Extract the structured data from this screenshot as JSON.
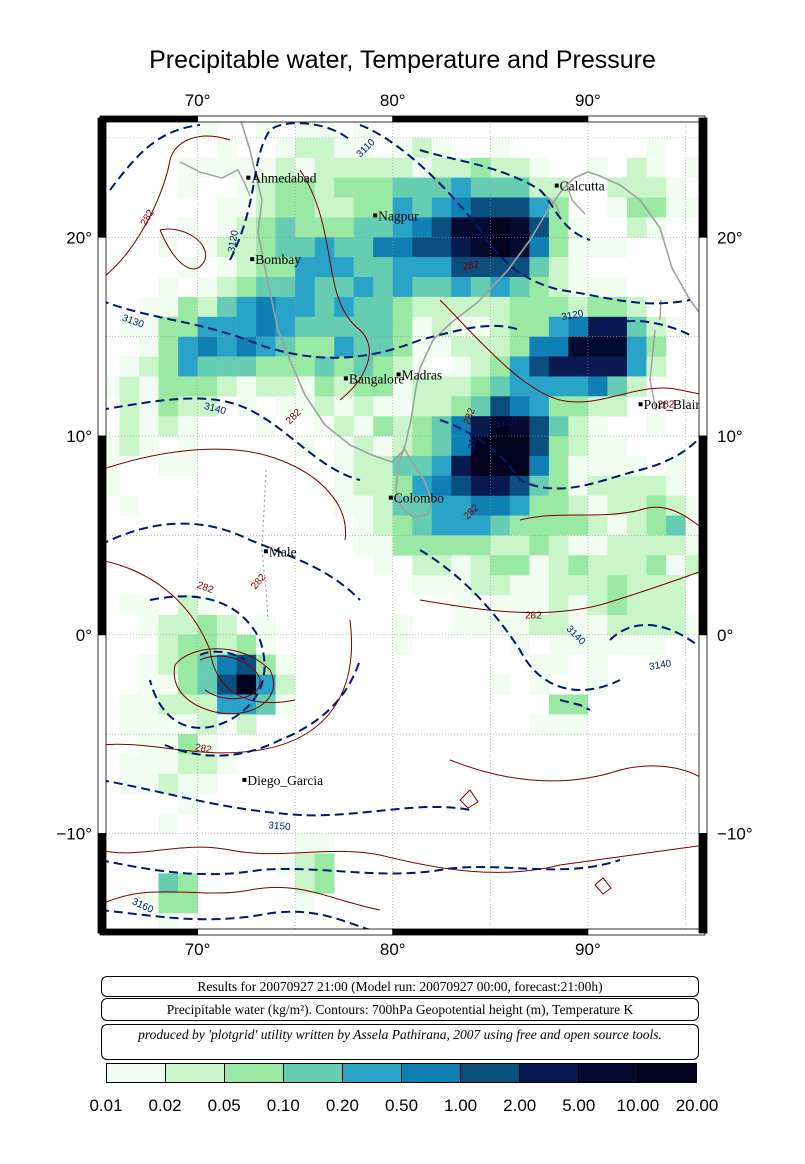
{
  "title": "Precipitable water, Temperature and Pressure",
  "map": {
    "lon_range": [
      65,
      96
    ],
    "lat_range": [
      -15,
      26
    ],
    "lon_ticks": [
      "70°",
      "80°",
      "90°"
    ],
    "lat_ticks": [
      "20°",
      "10°",
      "0°",
      "−10°"
    ],
    "grid": "dotted every 5°",
    "land_outline_color": "#a0a0a0",
    "cities": [
      {
        "name": "Ahmedabad",
        "lon": 72.6,
        "lat": 23.0
      },
      {
        "name": "Calcutta",
        "lon": 88.4,
        "lat": 22.6
      },
      {
        "name": "Nagpur",
        "lon": 79.1,
        "lat": 21.1
      },
      {
        "name": "Bombay",
        "lon": 72.8,
        "lat": 18.9
      },
      {
        "name": "Madras",
        "lon": 80.3,
        "lat": 13.1
      },
      {
        "name": "Bangalore",
        "lon": 77.6,
        "lat": 12.9
      },
      {
        "name": "Port_Blair",
        "lon": 92.7,
        "lat": 11.6
      },
      {
        "name": "Colombo",
        "lon": 79.9,
        "lat": 6.9
      },
      {
        "name": "Male",
        "lon": 73.5,
        "lat": 4.2
      },
      {
        "name": "Diego_Garcia",
        "lon": 72.4,
        "lat": -7.3
      }
    ],
    "contour_labels": {
      "geopotential": [
        {
          "text": "3110",
          "lon": 78.6,
          "lat": 24.5,
          "rot": -45
        },
        {
          "text": "3120",
          "lon": 71.8,
          "lat": 19.8,
          "rot": -80
        },
        {
          "text": "3120",
          "lon": 89.2,
          "lat": 16.1,
          "rot": -10
        },
        {
          "text": "3130",
          "lon": 66.7,
          "lat": 15.8,
          "rot": 20
        },
        {
          "text": "3140",
          "lon": 70.9,
          "lat": 11.4,
          "rot": 15
        },
        {
          "text": "3130",
          "lon": 84.1,
          "lat": 9.9,
          "rot": -80
        },
        {
          "text": "3120",
          "lon": 85.8,
          "lat": 10.7,
          "rot": -10
        },
        {
          "text": "3140",
          "lon": 89.4,
          "lat": 0.0,
          "rot": 45
        },
        {
          "text": "3140",
          "lon": 93.7,
          "lat": -1.5,
          "rot": -10
        },
        {
          "text": "3150",
          "lon": 74.2,
          "lat": -9.6,
          "rot": 5
        },
        {
          "text": "3160",
          "lon": 67.2,
          "lat": -13.6,
          "rot": 25
        }
      ],
      "temperature": [
        {
          "text": "282",
          "lon": 67.4,
          "lat": 21.0,
          "rot": -60
        },
        {
          "text": "282",
          "lon": 84.0,
          "lat": 18.6,
          "rot": -10
        },
        {
          "text": "282",
          "lon": 74.9,
          "lat": 11.0,
          "rot": -45
        },
        {
          "text": "282",
          "lon": 83.9,
          "lat": 11.0,
          "rot": -70
        },
        {
          "text": "282",
          "lon": 84.0,
          "lat": 6.2,
          "rot": -45
        },
        {
          "text": "282",
          "lon": 70.4,
          "lat": 2.4,
          "rot": 20
        },
        {
          "text": "282",
          "lon": 73.1,
          "lat": 2.7,
          "rot": -50
        },
        {
          "text": "282",
          "lon": 87.2,
          "lat": 1.0,
          "rot": 0
        },
        {
          "text": "282",
          "lon": 70.3,
          "lat": -5.7,
          "rot": 10
        },
        {
          "text": "282",
          "lon": 94.0,
          "lat": 11.6,
          "rot": 0
        }
      ]
    }
  },
  "info": {
    "line1": "Results for 20070927 21:00 (Model run: 20070927 00:00, forecast:21:00h)",
    "line2": "Precipitable water (kg/m²).  Contours: 700hPa Geopotential height (m), Temperature K",
    "line3": "produced by 'plotgrid' utility written by Assela Pathirana, 2007 using free and open source tools."
  },
  "legend": {
    "labels": [
      "0.01",
      "0.02",
      "0.05",
      "0.10",
      "0.20",
      "0.50",
      "1.00",
      "2.00",
      "5.00",
      "10.00",
      "20.00"
    ],
    "colors": [
      "#f0fdf0",
      "#c9f5c9",
      "#99e9a4",
      "#66ccb2",
      "#2aa3c9",
      "#0f7fb4",
      "#0b4f7e",
      "#081a50",
      "#050a30",
      "#030320"
    ]
  }
}
